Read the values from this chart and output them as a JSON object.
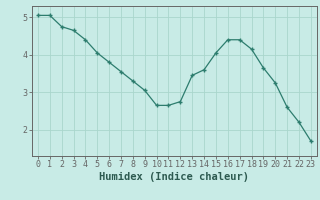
{
  "x": [
    0,
    1,
    2,
    3,
    4,
    5,
    6,
    7,
    8,
    9,
    10,
    11,
    12,
    13,
    14,
    15,
    16,
    17,
    18,
    19,
    20,
    21,
    22,
    23
  ],
  "y": [
    5.05,
    5.05,
    4.75,
    4.65,
    4.4,
    4.05,
    3.8,
    3.55,
    3.3,
    3.05,
    2.65,
    2.65,
    2.75,
    3.45,
    3.6,
    4.05,
    4.4,
    4.4,
    4.15,
    3.65,
    3.25,
    2.6,
    2.2,
    1.7
  ],
  "xlabel": "Humidex (Indice chaleur)",
  "xlim": [
    -0.5,
    23.5
  ],
  "ylim": [
    1.3,
    5.3
  ],
  "yticks": [
    2,
    3,
    4,
    5
  ],
  "xticks": [
    0,
    1,
    2,
    3,
    4,
    5,
    6,
    7,
    8,
    9,
    10,
    11,
    12,
    13,
    14,
    15,
    16,
    17,
    18,
    19,
    20,
    21,
    22,
    23
  ],
  "line_color": "#2d7d6e",
  "marker": "+",
  "bg_color": "#c8ebe6",
  "grid_color": "#aad6cc",
  "axis_color": "#666666",
  "label_color": "#2d5a50",
  "tick_fontsize": 6.0,
  "xlabel_fontsize": 7.5
}
